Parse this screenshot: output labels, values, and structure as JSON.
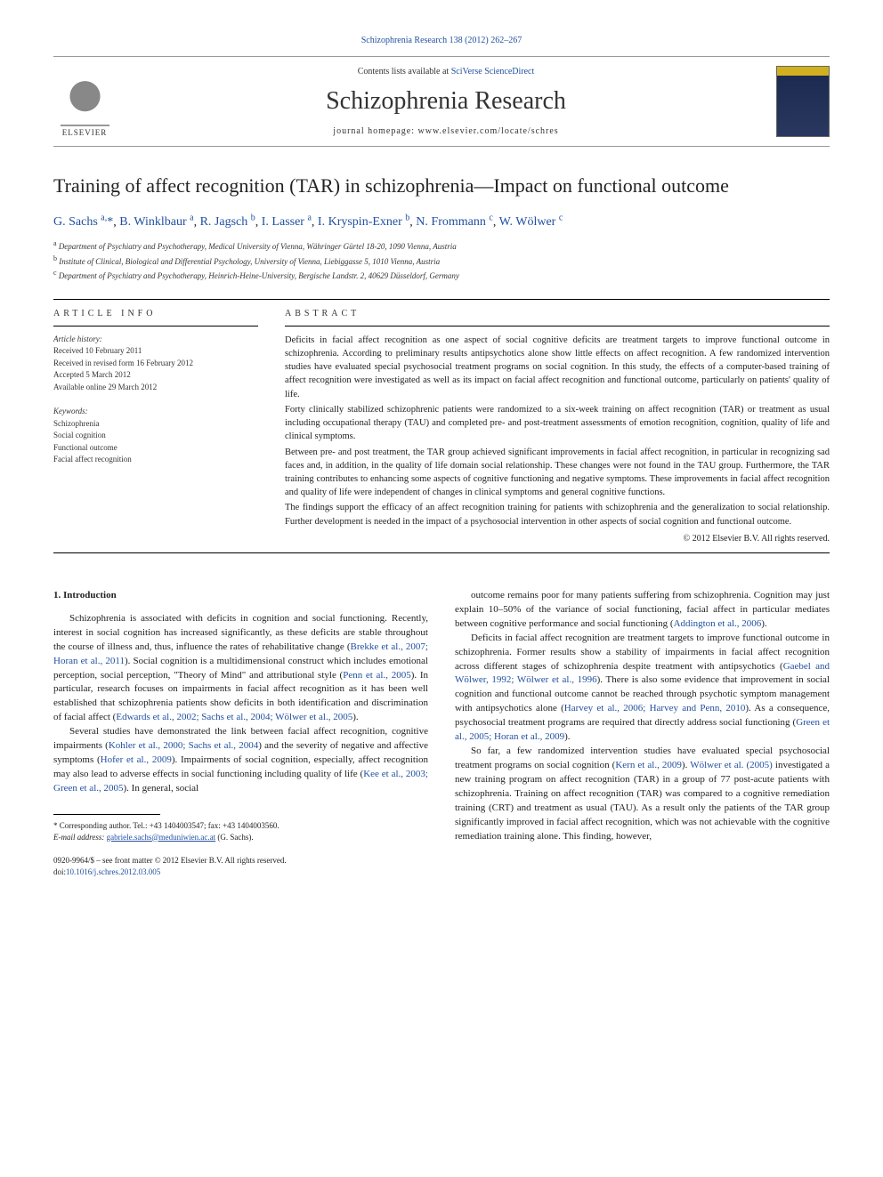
{
  "journal_ref": "Schizophrenia Research 138 (2012) 262–267",
  "header": {
    "contents_prefix": "Contents lists available at ",
    "contents_link": "SciVerse ScienceDirect",
    "journal_name": "Schizophrenia Research",
    "homepage_prefix": "journal homepage: ",
    "homepage_url": "www.elsevier.com/locate/schres",
    "elsevier_label": "ELSEVIER"
  },
  "title": "Training of affect recognition (TAR) in schizophrenia—Impact on functional outcome",
  "authors_html": "G. Sachs <sup>a,</sup>*, B. Winklbaur <sup>a</sup>, R. Jagsch <sup>b</sup>, I. Lasser <sup>a</sup>, I. Kryspin-Exner <sup>b</sup>, N. Frommann <sup>c</sup>, W. Wölwer <sup>c</sup>",
  "affiliations": [
    {
      "sup": "a",
      "text": "Department of Psychiatry and Psychotherapy, Medical University of Vienna, Währinger Gürtel 18-20, 1090 Vienna, Austria"
    },
    {
      "sup": "b",
      "text": "Institute of Clinical, Biological and Differential Psychology, University of Vienna, Liebiggasse 5, 1010 Vienna, Austria"
    },
    {
      "sup": "c",
      "text": "Department of Psychiatry and Psychotherapy, Heinrich-Heine-University, Bergische Landstr. 2, 40629 Düsseldorf, Germany"
    }
  ],
  "article_info": {
    "heading": "ARTICLE INFO",
    "history_label": "Article history:",
    "history": [
      "Received 10 February 2011",
      "Received in revised form 16 February 2012",
      "Accepted 5 March 2012",
      "Available online 29 March 2012"
    ],
    "keywords_label": "Keywords:",
    "keywords": [
      "Schizophrenia",
      "Social cognition",
      "Functional outcome",
      "Facial affect recognition"
    ]
  },
  "abstract": {
    "heading": "ABSTRACT",
    "paragraphs": [
      "Deficits in facial affect recognition as one aspect of social cognitive deficits are treatment targets to improve functional outcome in schizophrenia. According to preliminary results antipsychotics alone show little effects on affect recognition. A few randomized intervention studies have evaluated special psychosocial treatment programs on social cognition. In this study, the effects of a computer-based training of affect recognition were investigated as well as its impact on facial affect recognition and functional outcome, particularly on patients' quality of life.",
      "Forty clinically stabilized schizophrenic patients were randomized to a six-week training on affect recognition (TAR) or treatment as usual including occupational therapy (TAU) and completed pre- and post-treatment assessments of emotion recognition, cognition, quality of life and clinical symptoms.",
      "Between pre- and post treatment, the TAR group achieved significant improvements in facial affect recognition, in particular in recognizing sad faces and, in addition, in the quality of life domain social relationship. These changes were not found in the TAU group. Furthermore, the TAR training contributes to enhancing some aspects of cognitive functioning and negative symptoms. These improvements in facial affect recognition and quality of life were independent of changes in clinical symptoms and general cognitive functions.",
      "The findings support the efficacy of an affect recognition training for patients with schizophrenia and the generalization to social relationship. Further development is needed in the impact of a psychosocial intervention in other aspects of social cognition and functional outcome."
    ],
    "copyright": "© 2012 Elsevier B.V. All rights reserved."
  },
  "body": {
    "section_heading": "1. Introduction",
    "left_paragraphs": [
      "Schizophrenia is associated with deficits in cognition and social functioning. Recently, interest in social cognition has increased significantly, as these deficits are stable throughout the course of illness and, thus, influence the rates of rehabilitative change (<span class=\"link\">Brekke et al., 2007; Horan et al., 2011</span>). Social cognition is a multidimensional construct which includes emotional perception, social perception, \"Theory of Mind\" and attributional style (<span class=\"link\">Penn et al., 2005</span>). In particular, research focuses on impairments in facial affect recognition as it has been well established that schizophrenia patients show deficits in both identification and discrimination of facial affect (<span class=\"link\">Edwards et al., 2002; Sachs et al., 2004; Wölwer et al., 2005</span>).",
      "Several studies have demonstrated the link between facial affect recognition, cognitive impairments (<span class=\"link\">Kohler et al., 2000; Sachs et al., 2004</span>) and the severity of negative and affective symptoms (<span class=\"link\">Hofer et al., 2009</span>). Impairments of social cognition, especially, affect recognition may also lead to adverse effects in social functioning including quality of life (<span class=\"link\">Kee et al., 2003; Green et al., 2005</span>). In general, social"
    ],
    "right_paragraphs": [
      "outcome remains poor for many patients suffering from schizophrenia. Cognition may just explain 10–50% of the variance of social functioning, facial affect in particular mediates between cognitive performance and social functioning (<span class=\"link\">Addington et al., 2006</span>).",
      "Deficits in facial affect recognition are treatment targets to improve functional outcome in schizophrenia. Former results show a stability of impairments in facial affect recognition across different stages of schizophrenia despite treatment with antipsychotics (<span class=\"link\">Gaebel and Wölwer, 1992; Wölwer et al., 1996</span>). There is also some evidence that improvement in social cognition and functional outcome cannot be reached through psychotic symptom management with antipsychotics alone (<span class=\"link\">Harvey et al., 2006; Harvey and Penn, 2010</span>). As a consequence, psychosocial treatment programs are required that directly address social functioning (<span class=\"link\">Green et al., 2005; Horan et al., 2009</span>).",
      "So far, a few randomized intervention studies have evaluated special psychosocial treatment programs on social cognition (<span class=\"link\">Kern et al., 2009</span>). <span class=\"link\">Wölwer et al. (2005)</span> investigated a new training program on affect recognition (TAR) in a group of 77 post-acute patients with schizophrenia. Training on affect recognition (TAR) was compared to a cognitive remediation training (CRT) and treatment as usual (TAU). As a result only the patients of the TAR group significantly improved in facial affect recognition, which was not achievable with the cognitive remediation training alone. This finding, however,"
    ]
  },
  "footnote": {
    "corresponding": "* Corresponding author. Tel.: +43 1404003547; fax: +43 1404003560.",
    "email_label": "E-mail address:",
    "email": "gabriele.sachs@meduniwien.ac.at",
    "email_suffix": "(G. Sachs)."
  },
  "bottom": {
    "line1": "0920-9964/$ – see front matter © 2012 Elsevier B.V. All rights reserved.",
    "line2_prefix": "doi:",
    "doi": "10.1016/j.schres.2012.03.005"
  },
  "colors": {
    "link": "#2050a0",
    "text": "#222222",
    "rule": "#000000",
    "elsevier_orange": "#e77a2a"
  }
}
